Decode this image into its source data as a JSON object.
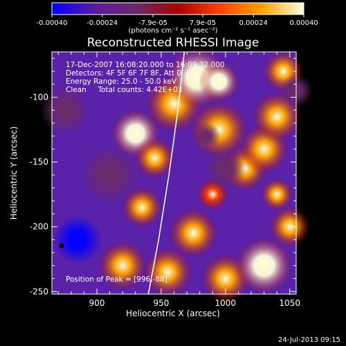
{
  "title": "Reconstructed RHESSI Image",
  "annotations": {
    "time": "17-Dec-2007 16:08:20.000 to 16:09:32.000",
    "detectors": "Detectors: 4F 5F 6F 7F 8F, Att 0",
    "energy": "Energy Range: 25.0 - 50.0 keV",
    "clean": "Clean     Total counts: 4.42E+03",
    "peak": "Position of Peak = [996,-88]"
  },
  "colorbar": {
    "ticks": [
      "-0.00040",
      "-0.00024",
      "-7.9e-05",
      "7.9e-05",
      "0.00024",
      "0.00040"
    ],
    "unit_label": "(photons cm⁻² s⁻¹ asec⁻²)",
    "colors": [
      "#0000ff",
      "#5a1aa0",
      "#6a2a6a",
      "#aa0000",
      "#ff4000",
      "#ffa000",
      "#ffffe0"
    ]
  },
  "timestamp": "24-Jul-2013 09:15",
  "chart_data": {
    "type": "heatmap",
    "title": "Reconstructed RHESSI Image",
    "xlabel": "Heliocentric X (arcsec)",
    "ylabel": "Heliocentric Y (arcsec)",
    "xlim": [
      865,
      1055
    ],
    "ylim": [
      -252,
      -65
    ],
    "xticks": [
      900,
      950,
      1000,
      1050
    ],
    "yticks": [
      -100,
      -150,
      -200,
      -250
    ],
    "xtick_labels": [
      "900",
      "950",
      "1000",
      "1050"
    ],
    "ytick_labels": [
      "-100",
      "-150",
      "-200",
      "-250"
    ],
    "value_range": [
      -0.0004,
      0.0004
    ],
    "peak": [
      996,
      -88
    ],
    "limb_curve": [
      [
        968,
        -65
      ],
      [
        963,
        -110
      ],
      [
        956,
        -160
      ],
      [
        948,
        -210
      ],
      [
        940,
        -252
      ]
    ],
    "blobs": [
      {
        "x": 930,
        "y": -128,
        "r": 12,
        "v": 0.00035
      },
      {
        "x": 945,
        "y": -147,
        "r": 10,
        "v": 0.00028
      },
      {
        "x": 960,
        "y": -105,
        "r": 14,
        "v": 0.0003
      },
      {
        "x": 978,
        "y": -85,
        "r": 15,
        "v": 0.00038
      },
      {
        "x": 995,
        "y": -88,
        "r": 10,
        "v": 0.0004
      },
      {
        "x": 995,
        "y": -125,
        "r": 14,
        "v": 0.00032
      },
      {
        "x": 1015,
        "y": -155,
        "r": 11,
        "v": 0.00025
      },
      {
        "x": 1030,
        "y": -140,
        "r": 12,
        "v": 0.0003
      },
      {
        "x": 1040,
        "y": -115,
        "r": 12,
        "v": 0.00028
      },
      {
        "x": 1045,
        "y": -80,
        "r": 10,
        "v": 0.00024
      },
      {
        "x": 935,
        "y": -185,
        "r": 10,
        "v": 0.00026
      },
      {
        "x": 920,
        "y": -230,
        "r": 12,
        "v": 0.00028
      },
      {
        "x": 955,
        "y": -235,
        "r": 12,
        "v": 0.0003
      },
      {
        "x": 975,
        "y": -205,
        "r": 12,
        "v": 0.00032
      },
      {
        "x": 1000,
        "y": -240,
        "r": 12,
        "v": 0.0003
      },
      {
        "x": 1030,
        "y": -230,
        "r": 14,
        "v": 0.00034
      },
      {
        "x": 1050,
        "y": -200,
        "r": 10,
        "v": 0.00022
      },
      {
        "x": 990,
        "y": -175,
        "r": 8,
        "v": 0.00018
      },
      {
        "x": 1040,
        "y": -175,
        "r": 8,
        "v": 0.0002
      },
      {
        "x": 875,
        "y": -110,
        "r": 12,
        "v": -0.0002
      },
      {
        "x": 885,
        "y": -210,
        "r": 12,
        "v": -0.00035
      },
      {
        "x": 910,
        "y": -160,
        "r": 14,
        "v": -0.00015
      },
      {
        "x": 1000,
        "y": -155,
        "r": 10,
        "v": -0.0002
      },
      {
        "x": 1055,
        "y": -95,
        "r": 8,
        "v": -0.00012
      },
      {
        "x": 985,
        "y": -130,
        "r": 7,
        "v": -0.0001
      }
    ]
  }
}
